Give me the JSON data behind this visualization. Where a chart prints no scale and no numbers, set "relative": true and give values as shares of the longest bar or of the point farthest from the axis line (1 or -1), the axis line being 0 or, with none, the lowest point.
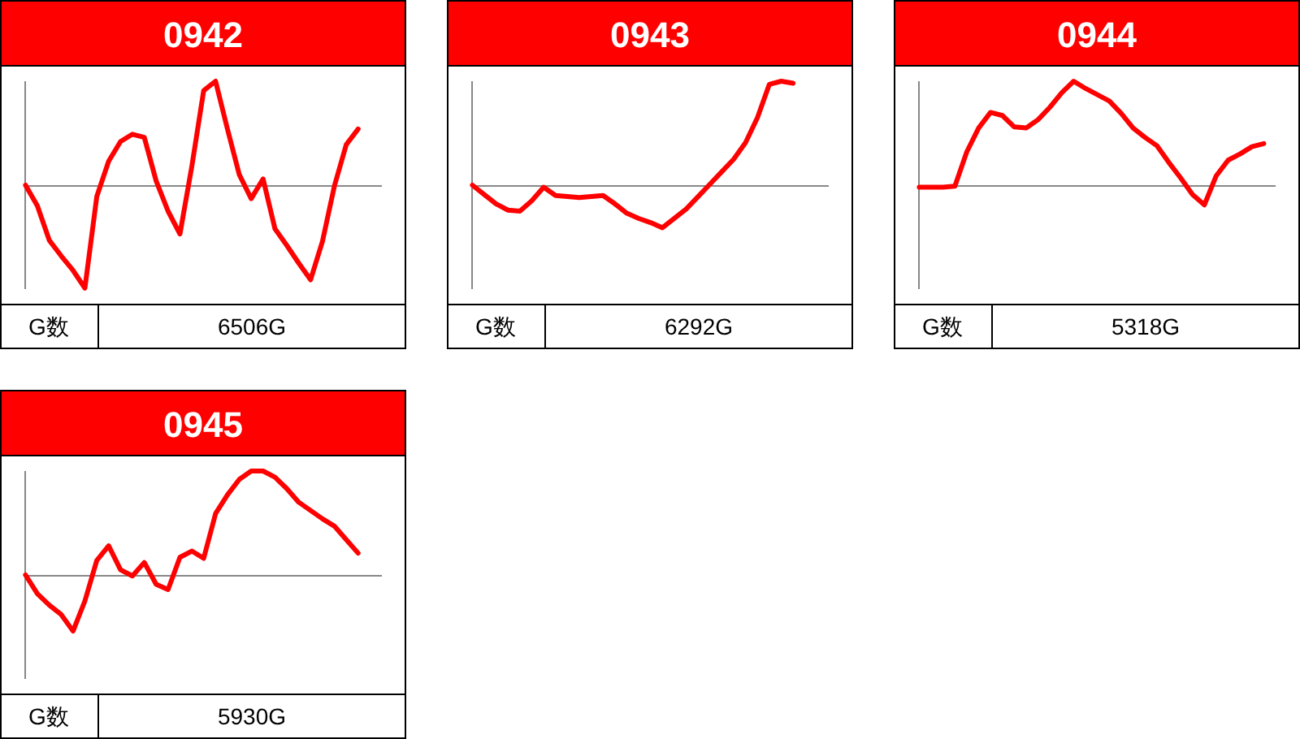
{
  "chart_data": [
    {
      "type": "line",
      "title": "0942",
      "relative": true,
      "categories": [
        null,
        null,
        null,
        null,
        null,
        null,
        null,
        null,
        null,
        null,
        null,
        null,
        null,
        null,
        null,
        null,
        null,
        null,
        null,
        null,
        null,
        null,
        null,
        null,
        null,
        null,
        null,
        null,
        null,
        null,
        null
      ],
      "series": [
        {
          "color": "#ff0000",
          "values": [
            0,
            -0.2,
            -0.53,
            -0.68,
            -0.82,
            -0.99,
            -0.11,
            0.23,
            0.42,
            0.49,
            0.46,
            0.04,
            -0.25,
            -0.47,
            0.18,
            0.91,
            1,
            0.54,
            0.1,
            -0.13,
            0.06,
            -0.42,
            -0.58,
            -0.75,
            -0.91,
            -0.54,
            -0.01,
            0.39,
            0.54,
            null,
            null
          ]
        }
      ],
      "annotations": [
        "G数",
        "6506G"
      ]
    },
    {
      "type": "line",
      "title": "0943",
      "relative": true,
      "categories": [
        null,
        null,
        null,
        null,
        null,
        null,
        null,
        null,
        null,
        null,
        null,
        null,
        null,
        null,
        null,
        null,
        null,
        null,
        null,
        null,
        null,
        null,
        null,
        null,
        null,
        null,
        null,
        null,
        null,
        null,
        null
      ],
      "series": [
        {
          "color": "#ff0000",
          "values": [
            0,
            -0.09,
            -0.18,
            -0.24,
            -0.25,
            -0.15,
            -0.02,
            -0.1,
            -0.11,
            -0.12,
            -0.11,
            -0.1,
            -0.18,
            -0.27,
            -0.32,
            -0.36,
            -0.41,
            -0.32,
            -0.23,
            -0.11,
            0.01,
            0.13,
            0.25,
            0.41,
            0.65,
            0.97,
            1,
            0.98,
            null,
            null,
            null
          ]
        }
      ],
      "annotations": [
        "G数",
        "6292G"
      ]
    },
    {
      "type": "line",
      "title": "0944",
      "relative": true,
      "categories": [
        null,
        null,
        null,
        null,
        null,
        null,
        null,
        null,
        null,
        null,
        null,
        null,
        null,
        null,
        null,
        null,
        null,
        null,
        null,
        null,
        null,
        null,
        null,
        null,
        null,
        null,
        null,
        null,
        null,
        null,
        null
      ],
      "series": [
        {
          "color": "#ff0000",
          "values": [
            -0.02,
            -0.02,
            -0.02,
            -0.01,
            0.32,
            0.55,
            0.7,
            0.67,
            0.56,
            0.55,
            0.63,
            0.75,
            0.89,
            1,
            0.93,
            0.87,
            0.81,
            0.69,
            0.55,
            0.46,
            0.38,
            0.22,
            0.07,
            -0.09,
            -0.19,
            0.09,
            0.24,
            0.3,
            0.37,
            0.4,
            null
          ]
        }
      ],
      "annotations": [
        "G数",
        "5318G"
      ]
    },
    {
      "type": "line",
      "title": "0945",
      "relative": true,
      "categories": [
        null,
        null,
        null,
        null,
        null,
        null,
        null,
        null,
        null,
        null,
        null,
        null,
        null,
        null,
        null,
        null,
        null,
        null,
        null,
        null,
        null,
        null,
        null,
        null,
        null,
        null,
        null,
        null,
        null,
        null,
        null
      ],
      "series": [
        {
          "color": "#ff0000",
          "values": [
            0,
            -0.18,
            -0.29,
            -0.38,
            -0.54,
            -0.25,
            0.14,
            0.28,
            0.05,
            -0.01,
            0.12,
            -0.09,
            -0.14,
            0.17,
            0.23,
            0.16,
            0.59,
            0.77,
            0.92,
            1,
            1,
            0.94,
            0.83,
            0.7,
            0.62,
            0.54,
            0.47,
            0.34,
            0.21,
            null,
            null
          ]
        }
      ],
      "annotations": [
        "G数",
        "5930G"
      ]
    }
  ]
}
